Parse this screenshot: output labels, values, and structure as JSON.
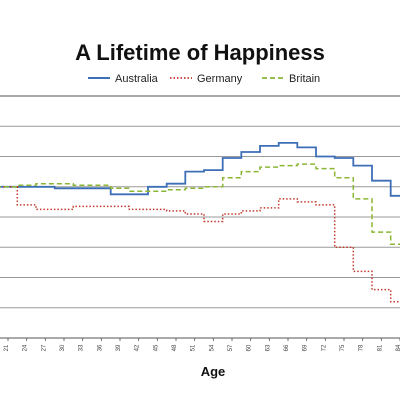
{
  "chart_data": {
    "type": "line",
    "title": "A Lifetime of Happiness",
    "xlabel": "Age",
    "ylabel": "",
    "x": [
      21,
      24,
      27,
      30,
      33,
      36,
      39,
      42,
      45,
      48,
      51,
      54,
      57,
      60,
      63,
      66,
      69,
      72,
      75,
      78,
      81,
      84
    ],
    "series": [
      {
        "name": "Australia",
        "color": "#3d6fb6",
        "dash": "solid",
        "values": [
          5.0,
          5.0,
          5.0,
          4.95,
          4.95,
          4.95,
          4.75,
          4.75,
          5.0,
          5.1,
          5.5,
          5.55,
          5.95,
          6.15,
          6.35,
          6.45,
          6.3,
          6.0,
          5.95,
          5.7,
          5.2,
          4.7
        ]
      },
      {
        "name": "Germany",
        "color": "#c0392b",
        "dash": "dot",
        "values": [
          5.0,
          4.4,
          4.25,
          4.25,
          4.35,
          4.35,
          4.35,
          4.25,
          4.25,
          4.2,
          4.1,
          3.85,
          4.1,
          4.2,
          4.3,
          4.6,
          4.5,
          4.4,
          3.0,
          2.2,
          1.6,
          1.2
        ]
      },
      {
        "name": "Britain",
        "color": "#8bb634",
        "dash": "dash",
        "values": [
          5.0,
          5.05,
          5.1,
          5.1,
          5.05,
          5.05,
          4.95,
          4.85,
          4.85,
          4.9,
          4.95,
          5.0,
          5.3,
          5.5,
          5.65,
          5.7,
          5.75,
          5.6,
          5.3,
          4.6,
          3.5,
          3.1
        ]
      }
    ],
    "ylim": [
      0,
      8
    ],
    "grid": true,
    "legend_position": "top"
  }
}
